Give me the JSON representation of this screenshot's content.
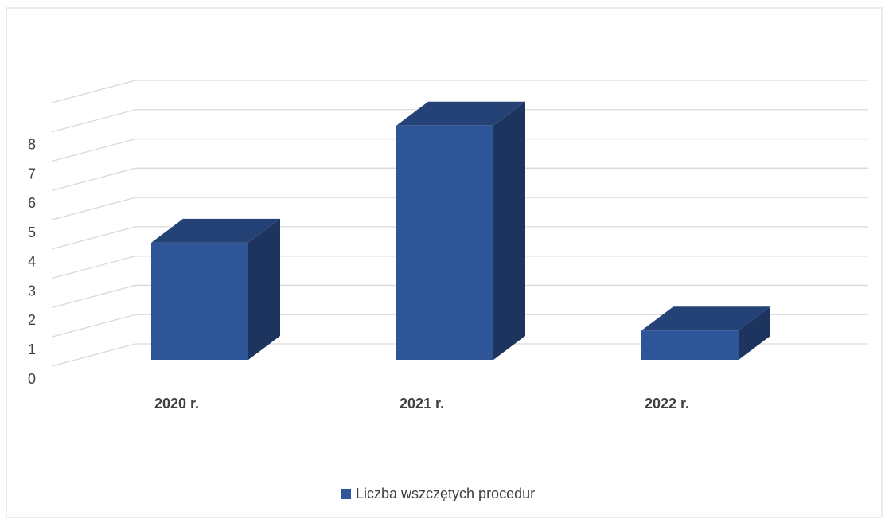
{
  "chart_data": {
    "type": "bar3d",
    "categories": [
      "2020 r.",
      "2021 r.",
      "2022 r."
    ],
    "series": [
      {
        "name": "Liczba wszczętych procedur",
        "color": "#2e5597",
        "values": [
          4,
          8,
          1
        ]
      }
    ],
    "ylim": [
      0,
      9
    ],
    "yticks": [
      0,
      1,
      2,
      3,
      4,
      5,
      6,
      7,
      8
    ],
    "grid": true,
    "legend": "bottom"
  }
}
